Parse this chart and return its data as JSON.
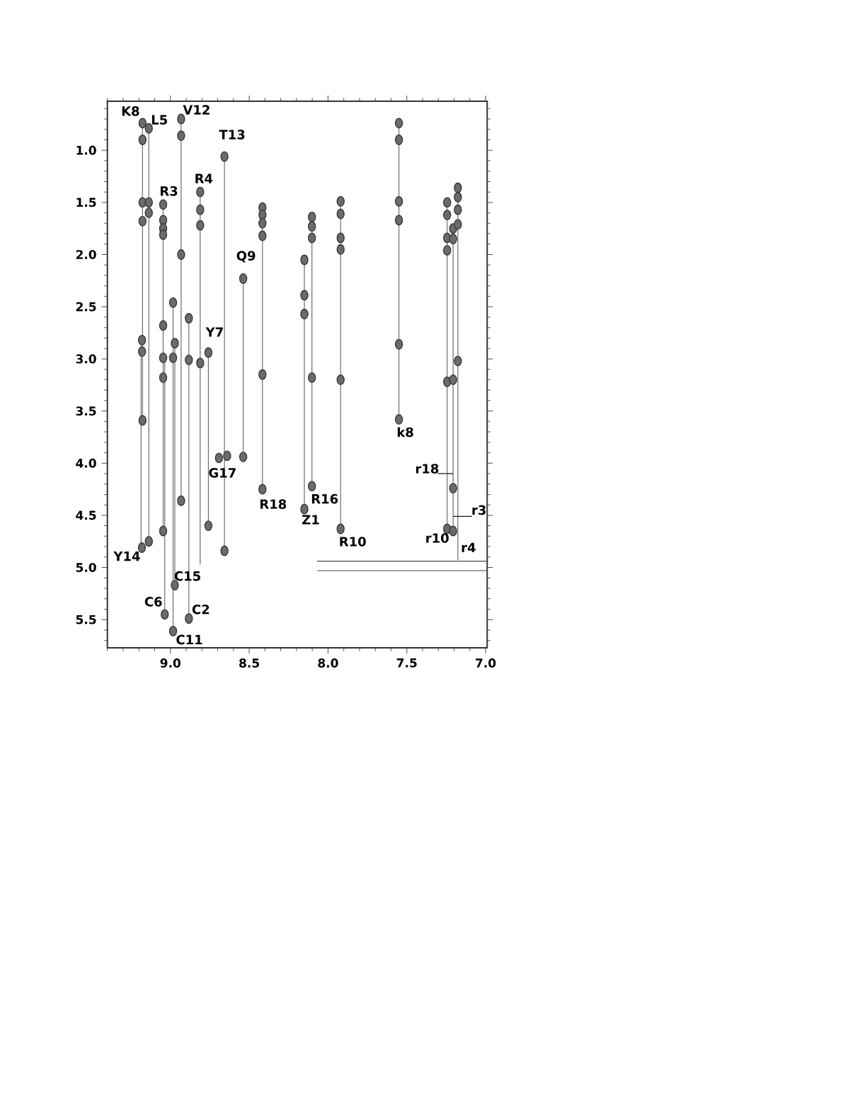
{
  "chart_data": {
    "type": "scatter",
    "xlim": [
      9.4,
      6.99
    ],
    "ylim": [
      5.77,
      0.53
    ],
    "xticks": [
      {
        "value": 9.4,
        "label": null
      },
      {
        "value": 9.3,
        "label": null
      },
      {
        "value": 9.2,
        "label": null
      },
      {
        "value": 9.1,
        "label": null
      },
      {
        "value": 9.0,
        "label": "9.0"
      },
      {
        "value": 8.9,
        "label": null
      },
      {
        "value": 8.8,
        "label": null
      },
      {
        "value": 8.7,
        "label": null
      },
      {
        "value": 8.6,
        "label": null
      },
      {
        "value": 8.5,
        "label": "8.5"
      },
      {
        "value": 8.4,
        "label": null
      },
      {
        "value": 8.3,
        "label": null
      },
      {
        "value": 8.2,
        "label": null
      },
      {
        "value": 8.1,
        "label": null
      },
      {
        "value": 8.0,
        "label": "8.0"
      },
      {
        "value": 7.9,
        "label": null
      },
      {
        "value": 7.8,
        "label": null
      },
      {
        "value": 7.7,
        "label": null
      },
      {
        "value": 7.6,
        "label": null
      },
      {
        "value": 7.5,
        "label": "7.5"
      },
      {
        "value": 7.4,
        "label": null
      },
      {
        "value": 7.3,
        "label": null
      },
      {
        "value": 7.2,
        "label": null
      },
      {
        "value": 7.1,
        "label": null
      },
      {
        "value": 7.0,
        "label": "7.0"
      }
    ],
    "yticks": [
      {
        "value": 0.6,
        "label": null
      },
      {
        "value": 0.7,
        "label": null
      },
      {
        "value": 0.8,
        "label": null
      },
      {
        "value": 0.9,
        "label": null
      },
      {
        "value": 1.0,
        "label": "1.0"
      },
      {
        "value": 1.1,
        "label": null
      },
      {
        "value": 1.2,
        "label": null
      },
      {
        "value": 1.3,
        "label": null
      },
      {
        "value": 1.4,
        "label": null
      },
      {
        "value": 1.5,
        "label": "1.5"
      },
      {
        "value": 1.6,
        "label": null
      },
      {
        "value": 1.7,
        "label": null
      },
      {
        "value": 1.8,
        "label": null
      },
      {
        "value": 1.9,
        "label": null
      },
      {
        "value": 2.0,
        "label": "2.0"
      },
      {
        "value": 2.1,
        "label": null
      },
      {
        "value": 2.2,
        "label": null
      },
      {
        "value": 2.3,
        "label": null
      },
      {
        "value": 2.4,
        "label": null
      },
      {
        "value": 2.5,
        "label": "2.5"
      },
      {
        "value": 2.6,
        "label": null
      },
      {
        "value": 2.7,
        "label": null
      },
      {
        "value": 2.8,
        "label": null
      },
      {
        "value": 2.9,
        "label": null
      },
      {
        "value": 3.0,
        "label": "3.0"
      },
      {
        "value": 3.1,
        "label": null
      },
      {
        "value": 3.2,
        "label": null
      },
      {
        "value": 3.3,
        "label": null
      },
      {
        "value": 3.4,
        "label": null
      },
      {
        "value": 3.5,
        "label": "3.5"
      },
      {
        "value": 3.6,
        "label": null
      },
      {
        "value": 3.7,
        "label": null
      },
      {
        "value": 3.8,
        "label": null
      },
      {
        "value": 3.9,
        "label": null
      },
      {
        "value": 4.0,
        "label": "4.0"
      },
      {
        "value": 4.1,
        "label": null
      },
      {
        "value": 4.2,
        "label": null
      },
      {
        "value": 4.3,
        "label": null
      },
      {
        "value": 4.4,
        "label": null
      },
      {
        "value": 4.5,
        "label": "4.5"
      },
      {
        "value": 4.6,
        "label": null
      },
      {
        "value": 4.7,
        "label": null
      },
      {
        "value": 4.8,
        "label": null
      },
      {
        "value": 4.9,
        "label": null
      },
      {
        "value": 5.0,
        "label": "5.0"
      },
      {
        "value": 5.1,
        "label": null
      },
      {
        "value": 5.2,
        "label": null
      },
      {
        "value": 5.3,
        "label": null
      },
      {
        "value": 5.4,
        "label": null
      },
      {
        "value": 5.5,
        "label": "5.5"
      },
      {
        "value": 5.6,
        "label": null
      },
      {
        "value": 5.7,
        "label": null
      }
    ],
    "marker": "circle",
    "series": [
      {
        "type": "line",
        "marker": "none",
        "color": "#6e6e6e",
        "x": [
          9.177,
          9.177,
          null,
          9.186,
          9.186,
          null,
          9.137,
          9.137,
          null,
          9.046,
          9.046,
          null,
          9.036,
          9.036,
          null,
          8.983,
          8.983,
          null,
          8.972,
          8.972,
          null,
          8.932,
          8.932,
          null,
          8.883,
          8.883,
          null,
          8.811,
          8.811,
          null,
          8.759,
          8.759,
          null,
          8.657,
          8.657,
          null,
          8.538,
          8.538,
          null,
          8.416,
          8.416,
          null,
          8.15,
          8.15,
          null,
          8.102,
          8.102,
          null,
          7.92,
          7.92,
          null,
          7.55,
          7.55,
          null,
          7.244,
          7.244,
          null,
          7.206,
          7.206,
          null,
          7.176,
          7.176
        ],
        "values": [
          0.74,
          3.59,
          null,
          2.82,
          4.81,
          null,
          0.79,
          4.75,
          null,
          1.52,
          4.65,
          null,
          2.99,
          5.45,
          null,
          2.46,
          5.61,
          null,
          2.85,
          5.17,
          null,
          0.7,
          4.36,
          null,
          2.61,
          5.49,
          null,
          1.4,
          4.97,
          null,
          2.94,
          4.6,
          null,
          1.06,
          4.84,
          null,
          2.23,
          3.94,
          null,
          1.55,
          4.25,
          null,
          2.05,
          4.44,
          null,
          1.64,
          4.22,
          null,
          1.49,
          4.63,
          null,
          0.74,
          3.58,
          null,
          1.5,
          4.63,
          null,
          1.75,
          4.65,
          null,
          1.36,
          4.93
        ]
      },
      {
        "type": "line",
        "marker": "none",
        "color": "#1a1a1a",
        "x": [
          7.304,
          7.206,
          null,
          7.206,
          7.087
        ],
        "values": [
          4.1,
          4.1,
          null,
          4.51,
          4.51
        ]
      },
      {
        "type": "line",
        "marker": "none",
        "color": "#4a4a4a",
        "x": [
          8.07,
          6.99
        ],
        "values": [
          4.94,
          4.94
        ]
      },
      {
        "type": "line",
        "marker": "none",
        "color": "#4a4a4a",
        "x": [
          8.07,
          6.99
        ],
        "values": [
          5.03,
          5.03
        ]
      },
      {
        "color": "#3a3a3a",
        "x": [
          9.177,
          9.177,
          9.177,
          9.177,
          9.177,
          9.18,
          9.18,
          9.181,
          9.137,
          9.137,
          9.137,
          9.137,
          9.046,
          9.046,
          9.046,
          9.046,
          9.046,
          9.046,
          9.046,
          9.046,
          9.036,
          8.983,
          8.983,
          8.983,
          8.972,
          8.972,
          8.932,
          8.932,
          8.932,
          8.932,
          8.883,
          8.883,
          8.883,
          8.811,
          8.811,
          8.811,
          8.811,
          8.759,
          8.759,
          8.657,
          8.657,
          8.692,
          8.64,
          8.538,
          8.538,
          8.416,
          8.416,
          8.416,
          8.416,
          8.416,
          8.416,
          8.15,
          8.15,
          8.15,
          8.15,
          8.102,
          8.102,
          8.102,
          8.102,
          8.102,
          7.92,
          7.92,
          7.92,
          7.92,
          7.92,
          7.92,
          7.55,
          7.55,
          7.55,
          7.55,
          7.55,
          7.55,
          7.244,
          7.244,
          7.244,
          7.244,
          7.244,
          7.244,
          7.206,
          7.206,
          7.206,
          7.206,
          7.206,
          7.176,
          7.176,
          7.176,
          7.176,
          7.176
        ],
        "values": [
          0.74,
          0.9,
          1.5,
          1.68,
          3.59,
          2.82,
          2.93,
          4.81,
          0.79,
          1.5,
          1.6,
          4.75,
          1.52,
          1.67,
          1.75,
          1.81,
          2.68,
          2.99,
          3.18,
          4.65,
          5.45,
          2.46,
          2.99,
          5.61,
          2.85,
          5.17,
          0.7,
          0.86,
          2.0,
          4.36,
          2.61,
          3.01,
          5.49,
          1.4,
          1.57,
          1.72,
          3.04,
          2.94,
          4.6,
          1.06,
          4.84,
          3.95,
          3.93,
          2.23,
          3.94,
          1.55,
          1.62,
          1.7,
          1.82,
          3.15,
          4.25,
          2.05,
          2.39,
          2.57,
          4.44,
          1.64,
          1.73,
          1.84,
          3.18,
          4.22,
          1.49,
          1.61,
          1.84,
          1.95,
          3.2,
          4.63,
          0.74,
          0.9,
          1.49,
          1.67,
          2.86,
          3.58,
          1.5,
          1.62,
          1.84,
          1.96,
          3.22,
          4.63,
          1.75,
          1.85,
          3.2,
          4.24,
          4.65,
          1.36,
          1.45,
          1.57,
          1.71,
          3.02
        ]
      }
    ],
    "annotations": [
      {
        "text": "K8",
        "x": 9.177,
        "y": 0.74
      },
      {
        "text": "L5",
        "x": 9.137,
        "y": 0.79
      },
      {
        "text": "V12",
        "x": 8.932,
        "y": 0.7
      },
      {
        "text": "T13",
        "x": 8.657,
        "y": 1.06
      },
      {
        "text": "R3",
        "x": 9.046,
        "y": 1.52
      },
      {
        "text": "R4",
        "x": 8.811,
        "y": 1.4
      },
      {
        "text": "Q9",
        "x": 8.538,
        "y": 2.23
      },
      {
        "text": "Y7",
        "x": 8.759,
        "y": 2.94
      },
      {
        "text": "G17",
        "x": 8.692,
        "y": 3.95
      },
      {
        "text": "R18",
        "x": 8.416,
        "y": 4.25
      },
      {
        "text": "R16",
        "x": 8.102,
        "y": 4.22
      },
      {
        "text": "Z1",
        "x": 8.15,
        "y": 4.44
      },
      {
        "text": "R10",
        "x": 7.92,
        "y": 4.63
      },
      {
        "text": "k8",
        "x": 7.55,
        "y": 3.58
      },
      {
        "text": "r18",
        "x": 7.304,
        "y": 4.1
      },
      {
        "text": "r3",
        "x": 7.087,
        "y": 4.51
      },
      {
        "text": "r10",
        "x": 7.244,
        "y": 4.63
      },
      {
        "text": "r4",
        "x": 7.176,
        "y": 4.93
      },
      {
        "text": "Y14",
        "x": 9.181,
        "y": 4.81
      },
      {
        "text": "C15",
        "x": 8.972,
        "y": 5.17
      },
      {
        "text": "C6",
        "x": 9.036,
        "y": 5.45
      },
      {
        "text": "C2",
        "x": 8.883,
        "y": 5.49
      },
      {
        "text": "C11",
        "x": 8.983,
        "y": 5.61
      }
    ]
  }
}
